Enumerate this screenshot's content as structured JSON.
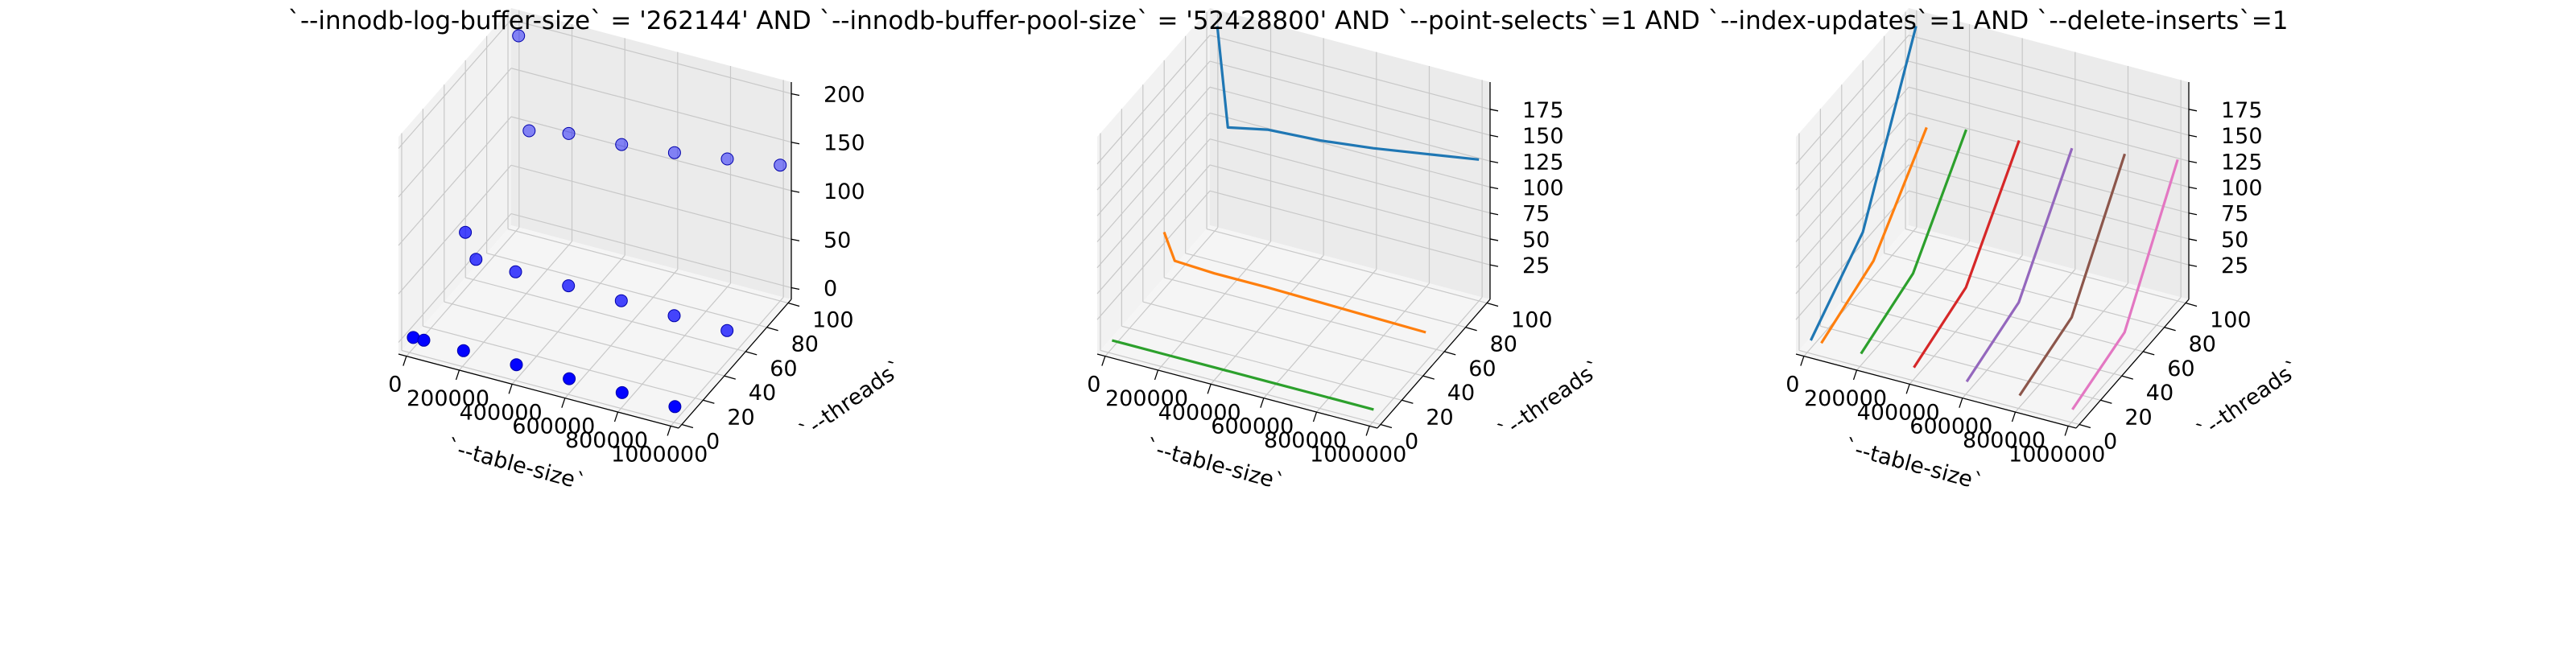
{
  "figure": {
    "title": "`--innodb-log-buffer-size` = '262144' AND `--innodb-buffer-pool-size` = '52428800'  AND `--point-selects`=1 AND `--index-updates`=1 AND `--delete-inserts`=1"
  },
  "chart_data": [
    {
      "type": "scatter3d",
      "marker_color": "#0000ff",
      "xlabel": "`--table-size`",
      "ylabel": "`--threads`",
      "zlabel": "",
      "xlim": [
        0,
        1000000
      ],
      "ylim": [
        0,
        100
      ],
      "zlim": [
        0,
        200
      ],
      "xticks": [
        "0",
        "200000",
        "400000",
        "600000",
        "800000",
        "1000000"
      ],
      "yticks": [
        "0",
        "20",
        "40",
        "60",
        "80",
        "100"
      ],
      "zticks": [
        "0",
        "50",
        "100",
        "150",
        "200"
      ],
      "points": [
        {
          "x": 10000,
          "y": 1,
          "z": 3
        },
        {
          "x": 50000,
          "y": 1,
          "z": 3
        },
        {
          "x": 200000,
          "y": 1,
          "z": 3
        },
        {
          "x": 400000,
          "y": 1,
          "z": 3
        },
        {
          "x": 600000,
          "y": 1,
          "z": 3
        },
        {
          "x": 800000,
          "y": 1,
          "z": 3
        },
        {
          "x": 1000000,
          "y": 1,
          "z": 3
        },
        {
          "x": 10000,
          "y": 50,
          "z": 50
        },
        {
          "x": 50000,
          "y": 50,
          "z": 25
        },
        {
          "x": 200000,
          "y": 50,
          "z": 23
        },
        {
          "x": 400000,
          "y": 50,
          "z": 23
        },
        {
          "x": 600000,
          "y": 50,
          "z": 22
        },
        {
          "x": 800000,
          "y": 50,
          "z": 21
        },
        {
          "x": 1000000,
          "y": 50,
          "z": 20
        },
        {
          "x": 10000,
          "y": 100,
          "z": 190
        },
        {
          "x": 50000,
          "y": 100,
          "z": 95
        },
        {
          "x": 200000,
          "y": 100,
          "z": 103
        },
        {
          "x": 400000,
          "y": 100,
          "z": 106
        },
        {
          "x": 600000,
          "y": 100,
          "z": 112
        },
        {
          "x": 800000,
          "y": 100,
          "z": 120
        },
        {
          "x": 1000000,
          "y": 100,
          "z": 128
        }
      ]
    },
    {
      "type": "line3d",
      "xlabel": "`--table-size`",
      "ylabel": "`--threads`",
      "zlabel": "",
      "xlim": [
        0,
        1000000
      ],
      "ylim": [
        0,
        100
      ],
      "zlim": [
        3,
        190
      ],
      "xticks": [
        "0",
        "200000",
        "400000",
        "600000",
        "800000",
        "1000000"
      ],
      "yticks": [
        "0",
        "20",
        "40",
        "60",
        "80",
        "100"
      ],
      "zticks": [
        "25",
        "50",
        "75",
        "100",
        "125",
        "150",
        "175"
      ],
      "series": [
        {
          "color": "#1f77b4",
          "points": [
            {
              "x": 10000,
              "y": 100,
              "z": 190
            },
            {
              "x": 50000,
              "y": 100,
              "z": 95
            },
            {
              "x": 200000,
              "y": 100,
              "z": 103
            },
            {
              "x": 400000,
              "y": 100,
              "z": 106
            },
            {
              "x": 600000,
              "y": 100,
              "z": 112
            },
            {
              "x": 800000,
              "y": 100,
              "z": 120
            },
            {
              "x": 1000000,
              "y": 100,
              "z": 128
            }
          ]
        },
        {
          "color": "#ff7f0e",
          "points": [
            {
              "x": 10000,
              "y": 50,
              "z": 50
            },
            {
              "x": 50000,
              "y": 50,
              "z": 25
            },
            {
              "x": 200000,
              "y": 50,
              "z": 23
            },
            {
              "x": 400000,
              "y": 50,
              "z": 23
            },
            {
              "x": 600000,
              "y": 50,
              "z": 22
            },
            {
              "x": 800000,
              "y": 50,
              "z": 21
            },
            {
              "x": 1000000,
              "y": 50,
              "z": 20
            }
          ]
        },
        {
          "color": "#2ca02c",
          "points": [
            {
              "x": 10000,
              "y": 1,
              "z": 3
            },
            {
              "x": 50000,
              "y": 1,
              "z": 3
            },
            {
              "x": 200000,
              "y": 1,
              "z": 3
            },
            {
              "x": 400000,
              "y": 1,
              "z": 3
            },
            {
              "x": 600000,
              "y": 1,
              "z": 3
            },
            {
              "x": 800000,
              "y": 1,
              "z": 3
            },
            {
              "x": 1000000,
              "y": 1,
              "z": 3
            }
          ]
        }
      ]
    },
    {
      "type": "line3d",
      "xlabel": "`--table-size`",
      "ylabel": "`--threads`",
      "zlabel": "",
      "xlim": [
        0,
        1000000
      ],
      "ylim": [
        0,
        100
      ],
      "zlim": [
        3,
        190
      ],
      "xticks": [
        "0",
        "200000",
        "400000",
        "600000",
        "800000",
        "1000000"
      ],
      "yticks": [
        "0",
        "20",
        "40",
        "60",
        "80",
        "100"
      ],
      "zticks": [
        "25",
        "50",
        "75",
        "100",
        "125",
        "150",
        "175"
      ],
      "series": [
        {
          "color": "#1f77b4",
          "points": [
            {
              "x": 10000,
              "y": 1,
              "z": 3
            },
            {
              "x": 10000,
              "y": 50,
              "z": 50
            },
            {
              "x": 10000,
              "y": 100,
              "z": 190
            }
          ]
        },
        {
          "color": "#ff7f0e",
          "points": [
            {
              "x": 50000,
              "y": 1,
              "z": 3
            },
            {
              "x": 50000,
              "y": 50,
              "z": 25
            },
            {
              "x": 50000,
              "y": 100,
              "z": 95
            }
          ]
        },
        {
          "color": "#2ca02c",
          "points": [
            {
              "x": 200000,
              "y": 1,
              "z": 3
            },
            {
              "x": 200000,
              "y": 50,
              "z": 23
            },
            {
              "x": 200000,
              "y": 100,
              "z": 103
            }
          ]
        },
        {
          "color": "#d62728",
          "points": [
            {
              "x": 400000,
              "y": 1,
              "z": 3
            },
            {
              "x": 400000,
              "y": 50,
              "z": 23
            },
            {
              "x": 400000,
              "y": 100,
              "z": 106
            }
          ]
        },
        {
          "color": "#9467bd",
          "points": [
            {
              "x": 600000,
              "y": 1,
              "z": 3
            },
            {
              "x": 600000,
              "y": 50,
              "z": 22
            },
            {
              "x": 600000,
              "y": 100,
              "z": 112
            }
          ]
        },
        {
          "color": "#8c564b",
          "points": [
            {
              "x": 800000,
              "y": 1,
              "z": 3
            },
            {
              "x": 800000,
              "y": 50,
              "z": 21
            },
            {
              "x": 800000,
              "y": 100,
              "z": 120
            }
          ]
        },
        {
          "color": "#e377c2",
          "points": [
            {
              "x": 1000000,
              "y": 1,
              "z": 3
            },
            {
              "x": 1000000,
              "y": 50,
              "z": 20
            },
            {
              "x": 1000000,
              "y": 100,
              "z": 128
            }
          ]
        }
      ]
    }
  ]
}
